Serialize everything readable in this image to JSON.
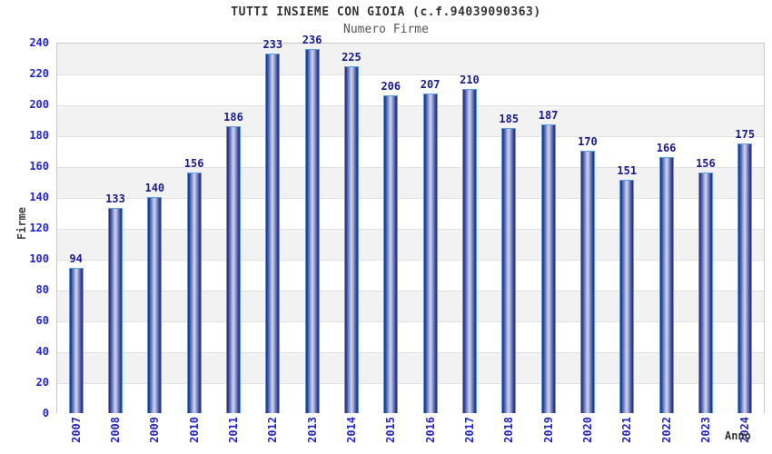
{
  "title": "TUTTI INSIEME CON GIOIA (c.f.94039090363)",
  "subtitle": "Numero Firme",
  "colors": {
    "title_text": "#333333",
    "subtitle_text": "#555555",
    "axis_tick_text": "#2424cc",
    "value_label_text": "#1a1a8e",
    "bar_dark": "#222c7e",
    "bar_light": "#d2d8ef",
    "bar_border": "#5b9fe0",
    "band_gray": "#f2f2f2",
    "band_white": "#ffffff",
    "gridline": "#e0e0e0",
    "plot_border": "#c9c9c9"
  },
  "chart_data": {
    "type": "bar",
    "title": "TUTTI INSIEME CON GIOIA (c.f.94039090363)",
    "subtitle": "Numero Firme",
    "categories": [
      "2007",
      "2008",
      "2009",
      "2010",
      "2011",
      "2012",
      "2013",
      "2014",
      "2015",
      "2016",
      "2017",
      "2018",
      "2019",
      "2020",
      "2021",
      "2022",
      "2023",
      "2024"
    ],
    "values": [
      94,
      133,
      140,
      156,
      186,
      233,
      236,
      225,
      206,
      207,
      210,
      185,
      187,
      170,
      151,
      166,
      156,
      175
    ],
    "xlabel": "Anno",
    "ylabel": "Firme",
    "ylim": [
      0,
      240
    ],
    "ytick_step": 20,
    "grid": "horizontal alternating bands every 20 units",
    "legend_position": "none",
    "value_labels": "above bars"
  }
}
